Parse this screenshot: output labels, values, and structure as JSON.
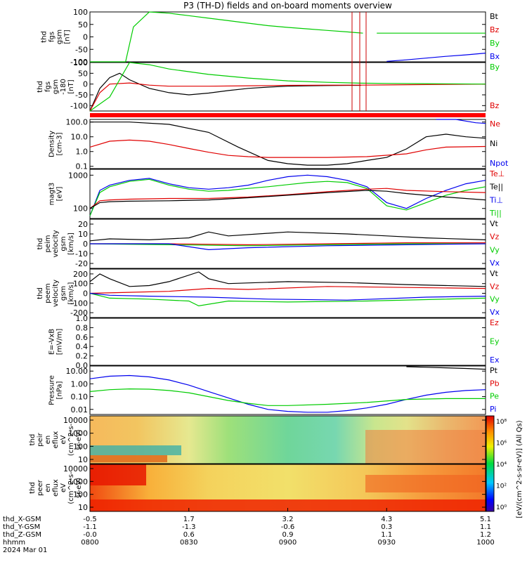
{
  "title": "P3 (TH-D) fields and on-board moments overview",
  "chart_data": [
    {
      "id": "fgs_gsm",
      "type": "line",
      "ylabel": [
        "thd",
        "fgs",
        "gsm",
        "[nT]"
      ],
      "ylim": [
        -100,
        100
      ],
      "yticks": [
        "100",
        "50",
        "0",
        "-50",
        "-100"
      ],
      "x_units": "hour",
      "legend": [
        {
          "name": "Bt",
          "color": "#000000"
        },
        {
          "name": "Bz",
          "color": "#e00000"
        },
        {
          "name": "By",
          "color": "#00cc00"
        },
        {
          "name": "Bx",
          "color": "#0000ee"
        }
      ],
      "series": [
        {
          "name": "By",
          "color": "#00cc00",
          "x": [
            8.0,
            8.18,
            8.22,
            8.3,
            8.4,
            8.5,
            8.6,
            8.7,
            8.8,
            8.9,
            9.0,
            9.1,
            9.2,
            9.3,
            9.38
          ],
          "y": [
            -100,
            -100,
            40,
            100,
            95,
            85,
            75,
            65,
            55,
            45,
            38,
            32,
            26,
            20,
            15
          ]
        },
        {
          "name": "By",
          "color": "#00cc00",
          "x": [
            9.45,
            10.0
          ],
          "y": [
            15,
            15
          ]
        },
        {
          "name": "Bx",
          "color": "#0000ee",
          "x": [
            9.5,
            9.6,
            9.7,
            9.8,
            9.9,
            10.0
          ],
          "y": [
            -98,
            -92,
            -85,
            -78,
            -72,
            -65
          ]
        }
      ]
    },
    {
      "id": "fgs_gsm_ylog",
      "type": "line",
      "ylabel": [
        "thd",
        "fgs",
        "gsm",
        "-180",
        "[nT]"
      ],
      "ylim": [
        -125,
        100
      ],
      "yticks": [
        "100",
        "50",
        "0",
        "-50",
        "-100"
      ],
      "legend": [
        {
          "name": "By",
          "color": "#00cc00"
        },
        {
          "name": "Bz",
          "color": "#e00000"
        }
      ],
      "series": [
        {
          "name": "Bt",
          "color": "#000000",
          "x": [
            8.0,
            8.05,
            8.1,
            8.15,
            8.2,
            8.3,
            8.4,
            8.5,
            8.6,
            8.7,
            8.8,
            8.9,
            9.0,
            9.1,
            9.2,
            9.3,
            9.37
          ],
          "y": [
            -125,
            -20,
            30,
            50,
            20,
            -20,
            -40,
            -50,
            -42,
            -30,
            -20,
            -14,
            -10,
            -8,
            -7,
            -6,
            -6
          ]
        },
        {
          "name": "Bz",
          "color": "#e00000",
          "x": [
            8.0,
            8.05,
            8.1,
            8.2,
            8.3,
            8.4,
            8.6,
            8.8,
            9.0,
            9.2,
            9.37,
            9.5,
            10.0
          ],
          "y": [
            -125,
            -40,
            0,
            5,
            -5,
            -10,
            -10,
            -8,
            -6,
            -5,
            -5,
            -4,
            0
          ]
        },
        {
          "name": "By",
          "color": "#00cc00",
          "x": [
            8.0,
            8.1,
            8.2,
            8.3,
            8.4,
            8.6,
            8.8,
            9.0,
            9.2,
            9.37,
            9.5,
            9.7,
            10.0
          ],
          "y": [
            -125,
            -60,
            100,
            90,
            70,
            45,
            28,
            15,
            8,
            4,
            3,
            2,
            0
          ]
        }
      ]
    },
    {
      "id": "density",
      "type": "line",
      "ylabel": [
        "Density",
        "[cm-3]"
      ],
      "scale": "log",
      "ylim": [
        0.07,
        150
      ],
      "yticks": [
        "100.0",
        "10.0",
        "1.0",
        "0.1"
      ],
      "legend": [
        {
          "name": "Ne",
          "color": "#e00000"
        },
        {
          "name": "Ni",
          "color": "#000000"
        },
        {
          "name": "Npot",
          "color": "#0000ee"
        }
      ],
      "series": [
        {
          "name": "Ni",
          "color": "#000000",
          "x": [
            8.0,
            8.2,
            8.4,
            8.6,
            8.75,
            8.9,
            9.0,
            9.1,
            9.2,
            9.3,
            9.4,
            9.5,
            9.6,
            9.7,
            9.8,
            9.9,
            10.0
          ],
          "y": [
            100,
            100,
            70,
            20,
            2,
            0.25,
            0.15,
            0.12,
            0.12,
            0.15,
            0.25,
            0.4,
            1.5,
            10,
            15,
            10,
            8
          ]
        },
        {
          "name": "Ne",
          "color": "#e00000",
          "x": [
            8.0,
            8.1,
            8.2,
            8.3,
            8.4,
            8.5,
            8.6,
            8.7,
            8.8,
            8.9,
            9.0,
            9.2,
            9.4,
            9.6,
            9.7,
            9.8,
            10.0
          ],
          "y": [
            2.0,
            5.0,
            6.0,
            5.0,
            3.0,
            1.6,
            0.9,
            0.55,
            0.45,
            0.4,
            0.4,
            0.4,
            0.45,
            0.7,
            1.3,
            2.0,
            2.2
          ]
        },
        {
          "name": "Npot",
          "color": "#0000ee",
          "x": [
            9.75,
            9.85,
            9.95,
            10.0
          ],
          "y": [
            150,
            150,
            90,
            80
          ]
        }
      ]
    },
    {
      "id": "temperature",
      "type": "line",
      "ylabel": [
        "magt3",
        "[eV]"
      ],
      "scale": "log",
      "ylim": [
        50,
        1500
      ],
      "yticks": [
        "1000",
        "100"
      ],
      "legend": [
        {
          "name": "Te⊥",
          "color": "#e00000"
        },
        {
          "name": "Te||",
          "color": "#000000"
        },
        {
          "name": "Ti⊥",
          "color": "#0000ee"
        },
        {
          "name": "Ti||",
          "color": "#00cc00"
        }
      ],
      "series": [
        {
          "name": "Ti⊥",
          "color": "#0000ee",
          "x": [
            8.0,
            8.05,
            8.1,
            8.2,
            8.3,
            8.4,
            8.5,
            8.6,
            8.7,
            8.8,
            8.9,
            9.0,
            9.1,
            9.2,
            9.3,
            9.4,
            9.5,
            9.6,
            9.7,
            9.8,
            9.9,
            10.0
          ],
          "y": [
            60,
            350,
            500,
            700,
            800,
            550,
            420,
            380,
            420,
            500,
            700,
            900,
            1000,
            900,
            700,
            450,
            150,
            100,
            200,
            350,
            550,
            700
          ]
        },
        {
          "name": "Ti||",
          "color": "#00cc00",
          "x": [
            8.0,
            8.05,
            8.1,
            8.2,
            8.3,
            8.4,
            8.5,
            8.6,
            8.7,
            8.8,
            8.9,
            9.0,
            9.1,
            9.2,
            9.3,
            9.4,
            9.5,
            9.6,
            9.7,
            9.8,
            9.9,
            10.0
          ],
          "y": [
            60,
            300,
            450,
            650,
            750,
            500,
            380,
            330,
            350,
            400,
            450,
            520,
            600,
            650,
            600,
            400,
            120,
            90,
            150,
            250,
            350,
            450
          ]
        },
        {
          "name": "Te⊥",
          "color": "#e00000",
          "x": [
            8.0,
            8.05,
            8.1,
            8.2,
            8.4,
            8.6,
            8.8,
            9.0,
            9.2,
            9.4,
            9.5,
            9.6,
            9.8,
            10.0
          ],
          "y": [
            100,
            170,
            180,
            190,
            200,
            200,
            220,
            260,
            320,
            380,
            400,
            350,
            320,
            300
          ]
        },
        {
          "name": "Te||",
          "color": "#000000",
          "x": [
            8.0,
            8.05,
            8.1,
            8.2,
            8.4,
            8.6,
            8.8,
            9.0,
            9.2,
            9.4,
            9.5,
            9.6,
            9.8,
            10.0
          ],
          "y": [
            100,
            150,
            160,
            165,
            170,
            180,
            210,
            250,
            300,
            350,
            330,
            280,
            220,
            180
          ]
        }
      ]
    },
    {
      "id": "peim_velocity",
      "type": "line",
      "ylabel": [
        "thd",
        "peim",
        "velocity",
        "gsm",
        "[km/s]"
      ],
      "ylim": [
        -25,
        25
      ],
      "yticks": [
        "20",
        "10",
        "0",
        "-10",
        "-20"
      ],
      "legend": [
        {
          "name": "Vt",
          "color": "#000000"
        },
        {
          "name": "Vz",
          "color": "#e00000"
        },
        {
          "name": "Vy",
          "color": "#00cc00"
        },
        {
          "name": "Vx",
          "color": "#0000ee"
        }
      ],
      "series": [
        {
          "name": "Vt",
          "color": "#000000",
          "x": [
            8.0,
            8.1,
            8.3,
            8.5,
            8.6,
            8.7,
            9.0,
            9.3,
            9.5,
            9.7,
            10.0
          ],
          "y": [
            3,
            5,
            4,
            6,
            12,
            8,
            12,
            10,
            8,
            6,
            4
          ]
        },
        {
          "name": "Vz",
          "color": "#e00000",
          "x": [
            8.0,
            8.4,
            8.8,
            9.2,
            9.6,
            10.0
          ],
          "y": [
            0,
            0,
            -1,
            0,
            1,
            1
          ]
        },
        {
          "name": "Vy",
          "color": "#00cc00",
          "x": [
            8.0,
            8.4,
            8.8,
            9.2,
            9.6,
            10.0
          ],
          "y": [
            0,
            -1,
            -2,
            -1,
            0,
            0
          ]
        },
        {
          "name": "Vx",
          "color": "#0000ee",
          "x": [
            8.0,
            8.4,
            8.6,
            8.8,
            9.2,
            9.6,
            10.0
          ],
          "y": [
            0,
            0,
            -6,
            -4,
            -2,
            -1,
            0
          ]
        }
      ]
    },
    {
      "id": "peem_velocity",
      "type": "line",
      "ylabel": [
        "thd",
        "peem",
        "velocity",
        "gsm",
        "[km/s]"
      ],
      "ylim": [
        -250,
        250
      ],
      "yticks": [
        "200",
        "100",
        "0",
        "-100",
        "-200"
      ],
      "legend": [
        {
          "name": "Vt",
          "color": "#000000"
        },
        {
          "name": "Vz",
          "color": "#e00000"
        },
        {
          "name": "Vy",
          "color": "#00cc00"
        },
        {
          "name": "Vx",
          "color": "#0000ee"
        }
      ],
      "series": [
        {
          "name": "Vt",
          "color": "#000000",
          "x": [
            8.0,
            8.05,
            8.1,
            8.2,
            8.3,
            8.4,
            8.55,
            8.6,
            8.7,
            9.0,
            9.3,
            9.6,
            10.0
          ],
          "y": [
            120,
            200,
            150,
            70,
            80,
            120,
            220,
            150,
            100,
            120,
            110,
            90,
            70
          ]
        },
        {
          "name": "Vz",
          "color": "#e00000",
          "x": [
            8.0,
            8.2,
            8.4,
            8.6,
            8.8,
            9.2,
            9.6,
            10.0
          ],
          "y": [
            0,
            10,
            20,
            50,
            40,
            70,
            60,
            50
          ]
        },
        {
          "name": "Vy",
          "color": "#00cc00",
          "x": [
            8.0,
            8.1,
            8.3,
            8.5,
            8.55,
            8.7,
            9.0,
            9.4,
            10.0
          ],
          "y": [
            0,
            -50,
            -60,
            -80,
            -130,
            -80,
            -90,
            -80,
            -50
          ]
        },
        {
          "name": "Vx",
          "color": "#0000ee",
          "x": [
            8.0,
            8.1,
            8.3,
            8.6,
            8.9,
            9.3,
            9.7,
            10.0
          ],
          "y": [
            0,
            -20,
            -30,
            -40,
            -60,
            -70,
            -40,
            -30
          ]
        }
      ]
    },
    {
      "id": "efield",
      "type": "line",
      "ylabel": [
        "E=-VxB",
        "[mV/m]"
      ],
      "ylim": [
        0,
        1
      ],
      "yticks": [
        "1.0",
        "0.8",
        "0.6",
        "0.4",
        "0.2",
        "0.0"
      ],
      "legend": [
        {
          "name": "Ez",
          "color": "#e00000"
        },
        {
          "name": "Ey",
          "color": "#00cc00"
        },
        {
          "name": "Ex",
          "color": "#0000ee"
        }
      ],
      "series": []
    },
    {
      "id": "pressure",
      "type": "line",
      "ylabel": [
        "Pressure",
        "[nPa]"
      ],
      "scale": "log",
      "ylim": [
        0.004,
        25
      ],
      "yticks": [
        "10.00",
        "1.00",
        "0.10",
        "0.01"
      ],
      "legend": [
        {
          "name": "Pt",
          "color": "#000000"
        },
        {
          "name": "Pb",
          "color": "#e00000"
        },
        {
          "name": "Pe",
          "color": "#00cc00"
        },
        {
          "name": "Pi",
          "color": "#0000ee"
        }
      ],
      "series": [
        {
          "name": "Pt",
          "color": "#000000",
          "x": [
            9.6,
            9.7,
            9.8,
            9.9,
            10.0
          ],
          "y": [
            22,
            20,
            18,
            16,
            14
          ]
        },
        {
          "name": "Pi",
          "color": "#0000ee",
          "x": [
            8.0,
            8.1,
            8.2,
            8.3,
            8.4,
            8.5,
            8.6,
            8.7,
            8.8,
            8.9,
            9.0,
            9.1,
            9.2,
            9.3,
            9.4,
            9.5,
            9.6,
            9.7,
            9.8,
            9.9,
            10.0
          ],
          "y": [
            2.5,
            4.0,
            4.5,
            3.5,
            2.0,
            0.8,
            0.25,
            0.08,
            0.025,
            0.01,
            0.007,
            0.006,
            0.006,
            0.008,
            0.013,
            0.025,
            0.06,
            0.13,
            0.22,
            0.3,
            0.35
          ]
        },
        {
          "name": "Pe",
          "color": "#00cc00",
          "x": [
            8.0,
            8.1,
            8.2,
            8.3,
            8.4,
            8.5,
            8.6,
            8.7,
            8.8,
            8.9,
            9.0,
            9.2,
            9.4,
            9.6,
            9.8,
            10.0
          ],
          "y": [
            0.25,
            0.35,
            0.4,
            0.38,
            0.3,
            0.2,
            0.1,
            0.05,
            0.03,
            0.02,
            0.02,
            0.025,
            0.035,
            0.06,
            0.07,
            0.07
          ]
        }
      ]
    },
    {
      "id": "peir_en_eflux",
      "type": "heatmap",
      "ylabel": [
        "thd",
        "peir",
        "en",
        "eflux",
        "eV",
        "(cm^2-s-",
        "sr-eV)"
      ],
      "yticks": [
        "10000",
        "1000",
        "100",
        "10"
      ]
    },
    {
      "id": "peer_en_eflux",
      "type": "heatmap",
      "ylabel": [
        "thd",
        "peer",
        "en",
        "eflux",
        "eV",
        "(cm^2-s-",
        "sr-eV)"
      ],
      "yticks": [
        "10000",
        "1000",
        "100",
        "10"
      ]
    }
  ],
  "colorbar": {
    "label": "[eV/(cm^2-s-sr-eV)] (All Qs)",
    "ticks": [
      "10⁸",
      "10⁶",
      "10⁴",
      "10²",
      "10⁰"
    ]
  },
  "xaxis": {
    "hours": [
      8.0,
      8.5,
      9.0,
      9.5,
      10.0
    ],
    "row_labels": [
      "thd_X-GSM",
      "thd_Y-GSM",
      "thd_Z-GSM",
      "hhmm",
      "2024 Mar 01"
    ],
    "columns": [
      [
        "-0.5",
        "-1.1",
        "-0.0",
        "0800"
      ],
      [
        "1.7",
        "-1.3",
        "0.6",
        "0830"
      ],
      [
        "3.2",
        "-0.6",
        "0.9",
        "0900"
      ],
      [
        "4.3",
        "0.3",
        "1.1",
        "0930"
      ],
      [
        "5.1",
        "1.1",
        "1.2",
        "1000"
      ]
    ]
  }
}
